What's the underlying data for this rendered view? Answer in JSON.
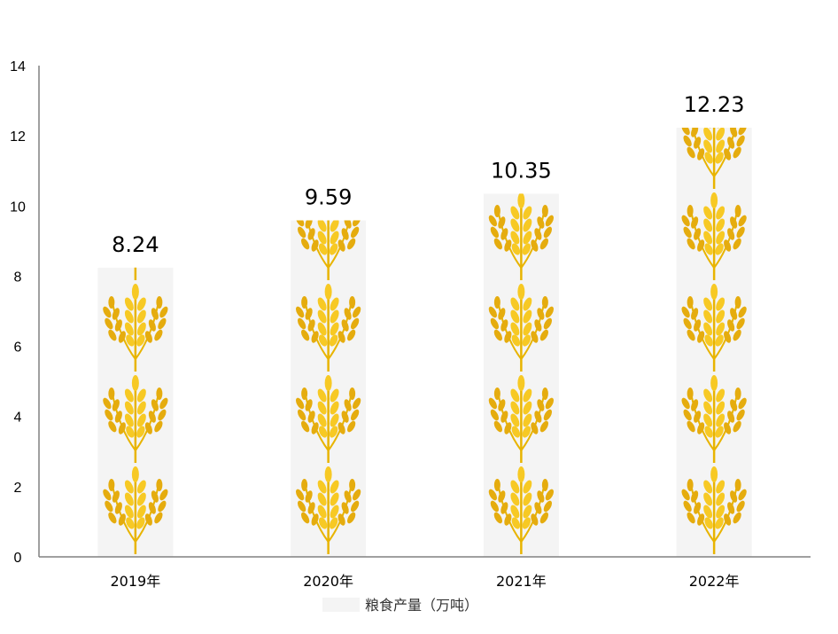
{
  "chart_data": {
    "type": "bar",
    "categories": [
      "2019年",
      "2020年",
      "2021年",
      "2022年"
    ],
    "series": [
      {
        "name": "粮食产量（万吨）",
        "values": [
          8.24,
          9.59,
          10.35,
          12.23
        ]
      }
    ],
    "data_labels": [
      "8.24",
      "9.59",
      "10.35",
      "12.23"
    ],
    "ylim": [
      0,
      14
    ],
    "yticks": [
      0,
      2,
      4,
      6,
      8,
      10,
      12,
      14
    ],
    "title": "",
    "xlabel": "",
    "ylabel": "",
    "grid": false,
    "legend_position": "bottom",
    "bar_fill": "wheat-icon-pictograph",
    "colors": {
      "bar_background": "#f4f4f4",
      "wheat_dark": "#e0a800",
      "wheat_light": "#f7c924",
      "axis": "#808080"
    }
  }
}
